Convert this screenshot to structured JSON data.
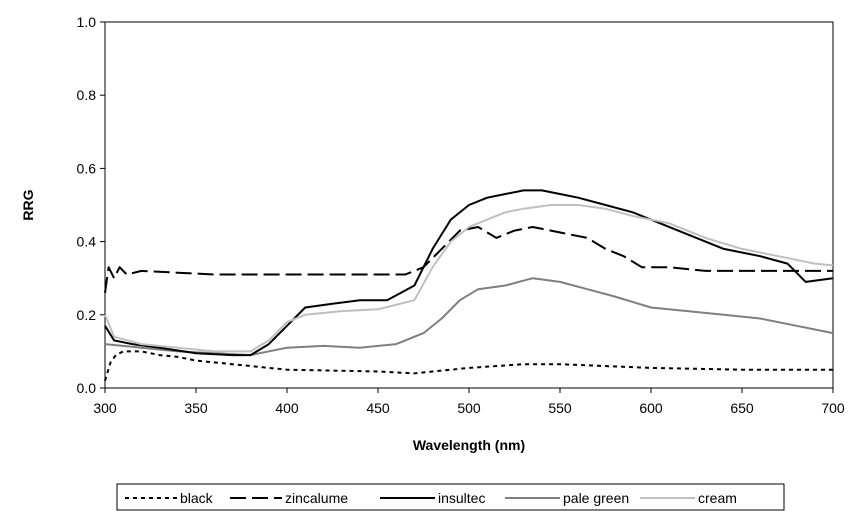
{
  "chart_data": {
    "type": "line",
    "xlabel": "Wavelength (nm)",
    "ylabel": "RRG",
    "xlim": [
      300,
      700
    ],
    "ylim": [
      0,
      1.0
    ],
    "xticks": [
      "300",
      "350",
      "400",
      "450",
      "500",
      "550",
      "600",
      "650",
      "700"
    ],
    "yticks": [
      "0.0",
      "0.2",
      "0.4",
      "0.6",
      "0.8",
      "1.0"
    ],
    "grid": false,
    "legend_position": "bottom",
    "series": [
      {
        "name": "black",
        "color": "#000000",
        "dash": "short-dash",
        "points": [
          [
            300,
            0.02
          ],
          [
            303,
            0.07
          ],
          [
            306,
            0.09
          ],
          [
            310,
            0.1
          ],
          [
            320,
            0.1
          ],
          [
            330,
            0.09
          ],
          [
            340,
            0.085
          ],
          [
            350,
            0.075
          ],
          [
            360,
            0.07
          ],
          [
            370,
            0.065
          ],
          [
            380,
            0.06
          ],
          [
            390,
            0.055
          ],
          [
            400,
            0.05
          ],
          [
            450,
            0.045
          ],
          [
            470,
            0.04
          ],
          [
            480,
            0.045
          ],
          [
            500,
            0.055
          ],
          [
            530,
            0.065
          ],
          [
            550,
            0.065
          ],
          [
            600,
            0.055
          ],
          [
            650,
            0.05
          ],
          [
            700,
            0.05
          ]
        ]
      },
      {
        "name": "zincalume",
        "color": "#000000",
        "dash": "long-dash",
        "points": [
          [
            300,
            0.26
          ],
          [
            302,
            0.33
          ],
          [
            305,
            0.3
          ],
          [
            308,
            0.33
          ],
          [
            312,
            0.31
          ],
          [
            320,
            0.32
          ],
          [
            340,
            0.315
          ],
          [
            360,
            0.31
          ],
          [
            400,
            0.31
          ],
          [
            450,
            0.31
          ],
          [
            465,
            0.31
          ],
          [
            475,
            0.33
          ],
          [
            485,
            0.38
          ],
          [
            495,
            0.43
          ],
          [
            505,
            0.44
          ],
          [
            515,
            0.41
          ],
          [
            525,
            0.43
          ],
          [
            535,
            0.44
          ],
          [
            545,
            0.43
          ],
          [
            555,
            0.42
          ],
          [
            565,
            0.41
          ],
          [
            575,
            0.38
          ],
          [
            585,
            0.36
          ],
          [
            595,
            0.33
          ],
          [
            610,
            0.33
          ],
          [
            630,
            0.32
          ],
          [
            660,
            0.32
          ],
          [
            700,
            0.32
          ]
        ]
      },
      {
        "name": "insultec",
        "color": "#000000",
        "dash": "solid",
        "points": [
          [
            300,
            0.17
          ],
          [
            305,
            0.13
          ],
          [
            315,
            0.12
          ],
          [
            330,
            0.11
          ],
          [
            350,
            0.095
          ],
          [
            370,
            0.09
          ],
          [
            380,
            0.09
          ],
          [
            390,
            0.12
          ],
          [
            400,
            0.17
          ],
          [
            410,
            0.22
          ],
          [
            425,
            0.23
          ],
          [
            440,
            0.24
          ],
          [
            455,
            0.24
          ],
          [
            470,
            0.28
          ],
          [
            480,
            0.38
          ],
          [
            490,
            0.46
          ],
          [
            500,
            0.5
          ],
          [
            510,
            0.52
          ],
          [
            520,
            0.53
          ],
          [
            530,
            0.54
          ],
          [
            540,
            0.54
          ],
          [
            550,
            0.53
          ],
          [
            560,
            0.52
          ],
          [
            575,
            0.5
          ],
          [
            590,
            0.48
          ],
          [
            605,
            0.45
          ],
          [
            620,
            0.42
          ],
          [
            640,
            0.38
          ],
          [
            660,
            0.36
          ],
          [
            675,
            0.34
          ],
          [
            685,
            0.29
          ],
          [
            700,
            0.3
          ]
        ]
      },
      {
        "name": "pale green",
        "color": "#7f7f7f",
        "dash": "solid",
        "points": [
          [
            300,
            0.12
          ],
          [
            320,
            0.11
          ],
          [
            340,
            0.1
          ],
          [
            360,
            0.095
          ],
          [
            380,
            0.09
          ],
          [
            400,
            0.11
          ],
          [
            420,
            0.115
          ],
          [
            440,
            0.11
          ],
          [
            460,
            0.12
          ],
          [
            475,
            0.15
          ],
          [
            485,
            0.19
          ],
          [
            495,
            0.24
          ],
          [
            505,
            0.27
          ],
          [
            520,
            0.28
          ],
          [
            535,
            0.3
          ],
          [
            550,
            0.29
          ],
          [
            565,
            0.27
          ],
          [
            580,
            0.25
          ],
          [
            600,
            0.22
          ],
          [
            620,
            0.21
          ],
          [
            640,
            0.2
          ],
          [
            660,
            0.19
          ],
          [
            680,
            0.17
          ],
          [
            700,
            0.15
          ]
        ]
      },
      {
        "name": "cream",
        "color": "#bfbfbf",
        "dash": "solid",
        "points": [
          [
            300,
            0.2
          ],
          [
            305,
            0.14
          ],
          [
            320,
            0.12
          ],
          [
            340,
            0.11
          ],
          [
            360,
            0.1
          ],
          [
            380,
            0.1
          ],
          [
            390,
            0.13
          ],
          [
            400,
            0.18
          ],
          [
            410,
            0.2
          ],
          [
            430,
            0.21
          ],
          [
            450,
            0.215
          ],
          [
            470,
            0.24
          ],
          [
            480,
            0.33
          ],
          [
            490,
            0.4
          ],
          [
            500,
            0.44
          ],
          [
            510,
            0.46
          ],
          [
            520,
            0.48
          ],
          [
            530,
            0.49
          ],
          [
            545,
            0.5
          ],
          [
            560,
            0.5
          ],
          [
            575,
            0.49
          ],
          [
            590,
            0.47
          ],
          [
            610,
            0.45
          ],
          [
            630,
            0.41
          ],
          [
            650,
            0.38
          ],
          [
            670,
            0.36
          ],
          [
            690,
            0.34
          ],
          [
            700,
            0.335
          ]
        ]
      }
    ]
  }
}
